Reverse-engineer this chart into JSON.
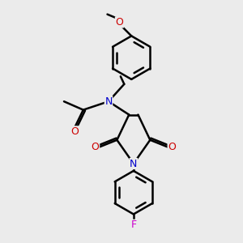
{
  "bg_color": "#ebebeb",
  "atom_colors": {
    "C": "#000000",
    "N": "#0000cc",
    "O": "#cc0000",
    "F": "#cc00cc"
  },
  "bond_color": "#000000",
  "bond_width": 1.8,
  "fig_size": [
    3.0,
    3.0
  ],
  "dpi": 100
}
